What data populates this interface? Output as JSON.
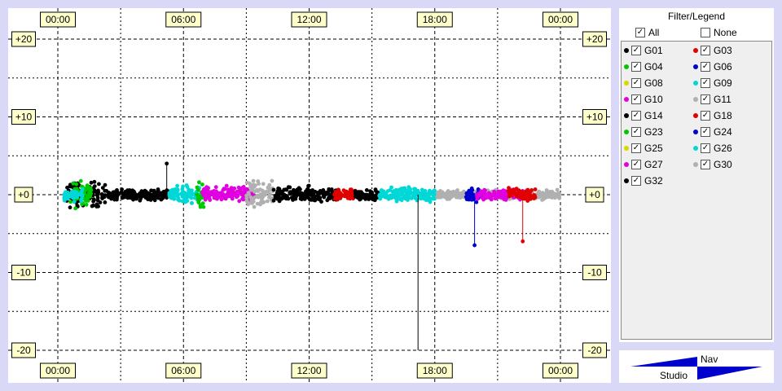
{
  "chart_data": {
    "type": "scatter",
    "x_ticks": [
      "00:00",
      "06:00",
      "12:00",
      "18:00",
      "00:00"
    ],
    "y_ticks": [
      "+20",
      "+10",
      "+0",
      "-10",
      "-20"
    ],
    "xlim": [
      0,
      24
    ],
    "ylim": [
      -20,
      20
    ],
    "grid": true,
    "baseline_y": 0,
    "spike_series": [
      {
        "name": "G14",
        "x": 5.2,
        "y": 4
      },
      {
        "name": "G06",
        "x": 19.9,
        "y": -6.5
      },
      {
        "name": "G18",
        "x": 22.2,
        "y": -6
      },
      {
        "name": "G14",
        "x": 17.2,
        "y": -20
      }
    ],
    "segments": [
      {
        "name": "G14",
        "x_start": 0.4,
        "x_end": 2.3,
        "spread": 1.0
      },
      {
        "name": "G04",
        "x_start": 0.6,
        "x_end": 1.6,
        "spread": 1.0
      },
      {
        "name": "G26",
        "x_start": 0.3,
        "x_end": 1.2,
        "spread": 0.5
      },
      {
        "name": "G14",
        "x_start": 2.3,
        "x_end": 5.3,
        "spread": 0.4
      },
      {
        "name": "G26",
        "x_start": 5.3,
        "x_end": 6.8,
        "spread": 0.7
      },
      {
        "name": "G04",
        "x_start": 6.6,
        "x_end": 7.0,
        "spread": 1.0
      },
      {
        "name": "G10",
        "x_start": 6.9,
        "x_end": 9.4,
        "spread": 0.6
      },
      {
        "name": "G30",
        "x_start": 9.0,
        "x_end": 10.3,
        "spread": 1.2
      },
      {
        "name": "G14",
        "x_start": 10.3,
        "x_end": 13.5,
        "spread": 0.6
      },
      {
        "name": "G18",
        "x_start": 13.2,
        "x_end": 14.5,
        "spread": 0.4
      },
      {
        "name": "G14",
        "x_start": 14.2,
        "x_end": 15.3,
        "spread": 0.5
      },
      {
        "name": "G26",
        "x_start": 15.3,
        "x_end": 18.1,
        "spread": 0.6
      },
      {
        "name": "G30",
        "x_start": 18.1,
        "x_end": 24.0,
        "spread": 0.35
      },
      {
        "name": "G06",
        "x_start": 19.5,
        "x_end": 20.3,
        "spread": 0.5
      },
      {
        "name": "G10",
        "x_start": 20.0,
        "x_end": 22.5,
        "spread": 0.4
      },
      {
        "name": "G18",
        "x_start": 21.5,
        "x_end": 22.8,
        "spread": 0.5
      }
    ]
  },
  "legend": {
    "title": "Filter/Legend",
    "all_label": "All",
    "all_checked": true,
    "none_label": "None",
    "none_checked": false,
    "items": [
      {
        "name": "G01",
        "color": "#000000"
      },
      {
        "name": "G03",
        "color": "#e00000"
      },
      {
        "name": "G04",
        "color": "#00c800"
      },
      {
        "name": "G06",
        "color": "#0000d0"
      },
      {
        "name": "G08",
        "color": "#d8d800"
      },
      {
        "name": "G09",
        "color": "#00d8d8"
      },
      {
        "name": "G10",
        "color": "#e000e0"
      },
      {
        "name": "G11",
        "color": "#b0b0b0"
      },
      {
        "name": "G14",
        "color": "#000000"
      },
      {
        "name": "G18",
        "color": "#e00000"
      },
      {
        "name": "G23",
        "color": "#00c800"
      },
      {
        "name": "G24",
        "color": "#0000d0"
      },
      {
        "name": "G25",
        "color": "#d8d800"
      },
      {
        "name": "G26",
        "color": "#00d8d8"
      },
      {
        "name": "G27",
        "color": "#e000e0"
      },
      {
        "name": "G30",
        "color": "#b0b0b0"
      },
      {
        "name": "G32",
        "color": "#000000"
      }
    ]
  },
  "logo": {
    "top_text": "Nav",
    "bottom_text": "Studio",
    "color": "#0000cc"
  }
}
